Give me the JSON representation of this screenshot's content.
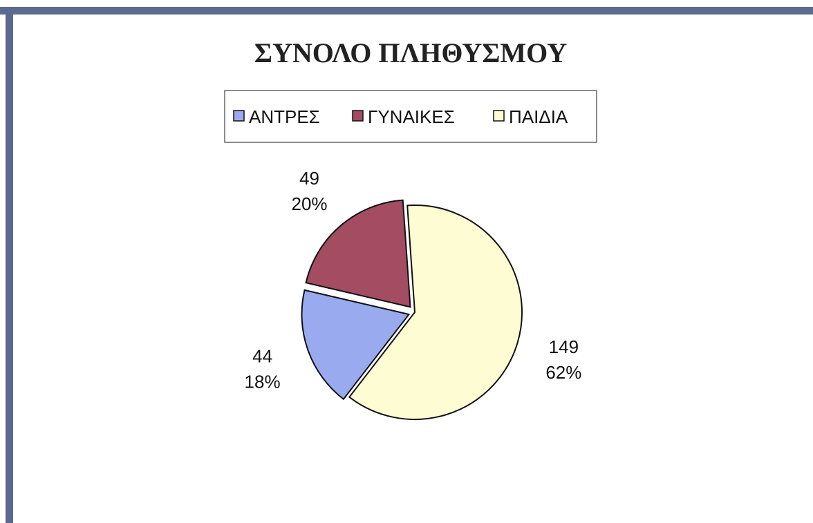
{
  "chart_data": {
    "type": "pie",
    "title": "ΣΥΝΟΛΟ ΠΛΗΘΥΣΜΟΥ",
    "legend_position": "top",
    "categories": [
      "ΑΝΤΡΕΣ",
      "ΓΥΝΑΙΚΕΣ",
      "ΠΑΙΔΙΑ"
    ],
    "values": [
      44,
      49,
      149
    ],
    "percent_labels": [
      "18%",
      "20%",
      "62%"
    ],
    "value_labels": [
      "44",
      "49",
      "149"
    ],
    "colors": [
      "#99aaee",
      "#a34c62",
      "#fdfcd2"
    ],
    "exploded": true
  }
}
